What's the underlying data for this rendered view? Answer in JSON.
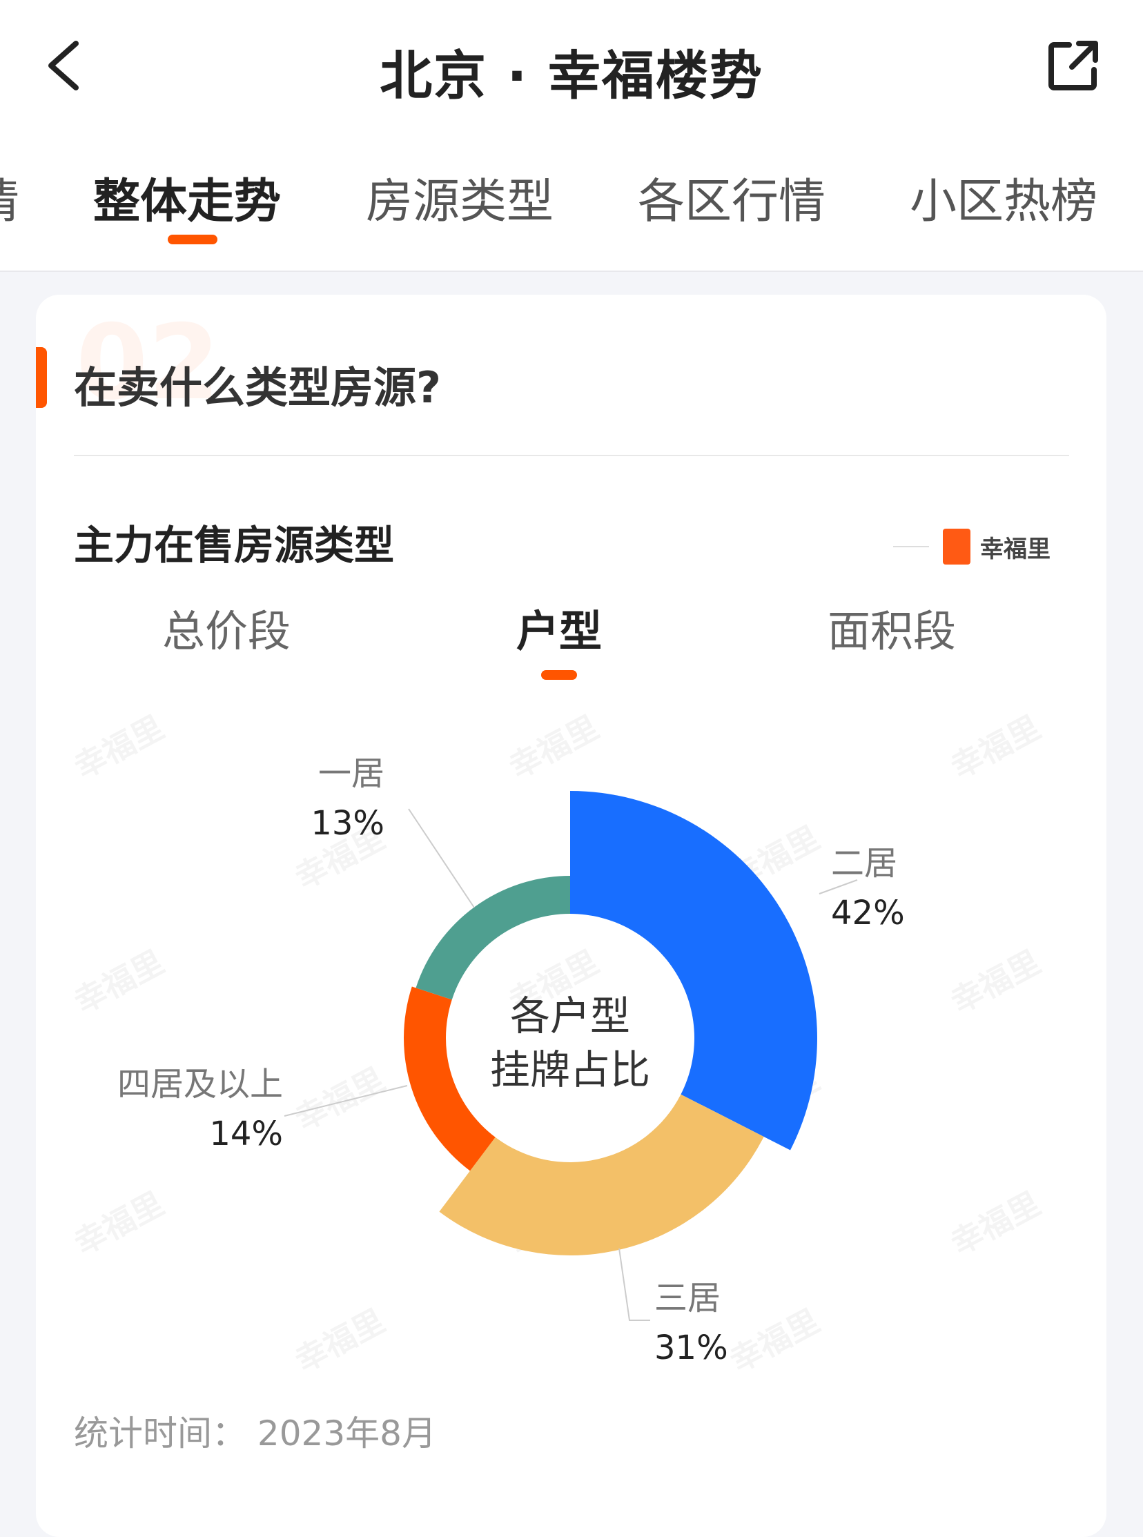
{
  "header": {
    "title": "北京 · 幸福楼势",
    "back_icon": "chevron-left-icon",
    "share_icon": "share-icon"
  },
  "tabs": [
    {
      "label": "情"
    },
    {
      "label": "整体走势",
      "active": true
    },
    {
      "label": "房源类型"
    },
    {
      "label": "各区行情"
    },
    {
      "label": "小区热榜"
    }
  ],
  "section": {
    "number": "02",
    "title": "在卖什么类型房源?"
  },
  "chart_card": {
    "title": "主力在售房源类型",
    "logo_text": "幸福里",
    "sub_tabs": [
      {
        "label": "总价段"
      },
      {
        "label": "户型",
        "active": true
      },
      {
        "label": "面积段"
      }
    ],
    "footer": "统计时间： 2023年8月",
    "watermark": "幸福里"
  },
  "chart_data": {
    "type": "pie",
    "variant": "rose-donut",
    "center_label": [
      "各户型",
      "挂牌占比"
    ],
    "slices": [
      {
        "label": "二居",
        "value": 42,
        "display": "42%",
        "color": "#186eff"
      },
      {
        "label": "三居",
        "value": 31,
        "display": "31%",
        "color": "#f3c068"
      },
      {
        "label": "四居及以上",
        "value": 14,
        "display": "14%",
        "color": "#ff5500"
      },
      {
        "label": "一居",
        "value": 13,
        "display": "13%",
        "color": "#4f9f90"
      }
    ]
  }
}
